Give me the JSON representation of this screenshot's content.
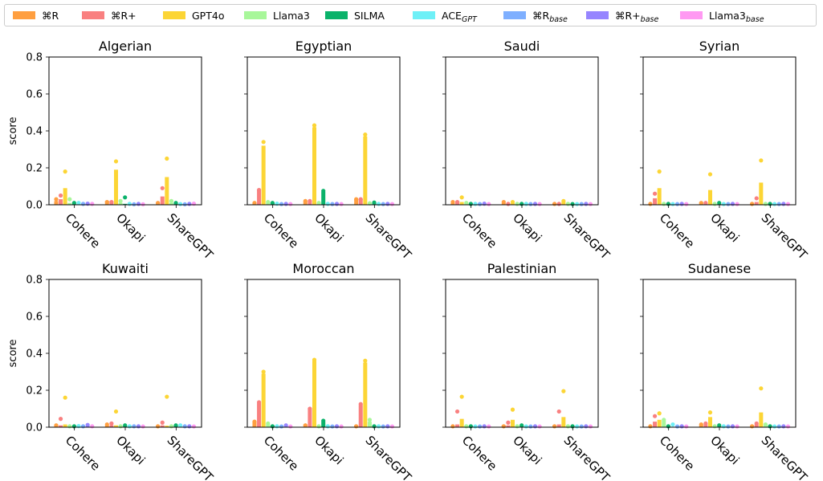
{
  "legend": [
    {
      "label": "⌘R",
      "sub": "",
      "color": "#ff9f40"
    },
    {
      "label": "⌘R+",
      "sub": "",
      "color": "#f98080"
    },
    {
      "label": "GPT4o",
      "sub": "",
      "color": "#fcd535"
    },
    {
      "label": "Llama3",
      "sub": "",
      "color": "#a8f79a"
    },
    {
      "label": "SILMA",
      "sub": "",
      "color": "#0ab26a"
    },
    {
      "label": "ACE",
      "sub": "GPT",
      "color": "#6ef0f7"
    },
    {
      "label": "⌘R",
      "sub": "base",
      "color": "#7eafff"
    },
    {
      "label": "⌘R+",
      "sub": "base",
      "color": "#9685ff"
    },
    {
      "label": "Llama3",
      "sub": "base",
      "color": "#ff99f2"
    }
  ],
  "chart_data": {
    "type": "bar",
    "ylabel": "score",
    "ylim": [
      0,
      0.8
    ],
    "yticks": [
      "0.0",
      "0.2",
      "0.4",
      "0.6",
      "0.8"
    ],
    "categories": [
      "Cohere",
      "Okapi",
      "ShareGPT"
    ],
    "series_names": [
      "⌘R",
      "⌘R+",
      "GPT4o",
      "Llama3",
      "SILMA",
      "ACEGPT",
      "⌘Rbase",
      "⌘R+base",
      "Llama3base"
    ],
    "panels": [
      {
        "title": "Algerian",
        "bars": [
          [
            0.02,
            0.03,
            0.09,
            0.01,
            0.005,
            0.004,
            0.003,
            0.004,
            0.003
          ],
          [
            0.02,
            0.02,
            0.19,
            0.01,
            0.005,
            0.004,
            0.003,
            0.004,
            0.003
          ],
          [
            0.01,
            0.045,
            0.15,
            0.01,
            0.012,
            0.004,
            0.003,
            0.004,
            0.003
          ]
        ],
        "points": [
          [
            0.03,
            0.05,
            0.18,
            0.03,
            0.01,
            0.01,
            0.005,
            0.006,
            0.005
          ],
          [
            0.015,
            0.015,
            0.235,
            0.02,
            0.04,
            0.005,
            0.003,
            0.005,
            0.003
          ],
          [
            0.01,
            0.09,
            0.25,
            0.02,
            0.01,
            0.004,
            0.003,
            0.005,
            0.006
          ]
        ]
      },
      {
        "title": "Egyptian",
        "bars": [
          [
            0.01,
            0.08,
            0.32,
            0.01,
            0.01,
            0.004,
            0.003,
            0.004,
            0.003
          ],
          [
            0.02,
            0.02,
            0.42,
            0.01,
            0.07,
            0.004,
            0.003,
            0.004,
            0.003
          ],
          [
            0.03,
            0.03,
            0.37,
            0.005,
            0.01,
            0.004,
            0.003,
            0.004,
            0.003
          ]
        ],
        "points": [
          [
            0.01,
            0.08,
            0.34,
            0.015,
            0.01,
            0.006,
            0.004,
            0.005,
            0.004
          ],
          [
            0.02,
            0.02,
            0.43,
            0.01,
            0.075,
            0.005,
            0.004,
            0.005,
            0.004
          ],
          [
            0.03,
            0.03,
            0.38,
            0.008,
            0.012,
            0.005,
            0.004,
            0.005,
            0.004
          ]
        ]
      },
      {
        "title": "Saudi",
        "bars": [
          [
            0.01,
            0.015,
            0.015,
            0.005,
            0.003,
            0.003,
            0.003,
            0.004,
            0.003
          ],
          [
            0.01,
            0.005,
            0.008,
            0.004,
            0.003,
            0.003,
            0.003,
            0.004,
            0.003
          ],
          [
            0.008,
            0.008,
            0.015,
            0.004,
            0.003,
            0.003,
            0.003,
            0.004,
            0.003
          ]
        ],
        "points": [
          [
            0.015,
            0.015,
            0.04,
            0.01,
            0.005,
            0.005,
            0.004,
            0.006,
            0.004
          ],
          [
            0.015,
            0.005,
            0.015,
            0.005,
            0.005,
            0.005,
            0.004,
            0.005,
            0.004
          ],
          [
            0.005,
            0.005,
            0.02,
            0.005,
            0.004,
            0.004,
            0.004,
            0.005,
            0.004
          ]
        ]
      },
      {
        "title": "Syrian",
        "bars": [
          [
            0.005,
            0.035,
            0.09,
            0.005,
            0.004,
            0.003,
            0.003,
            0.004,
            0.003
          ],
          [
            0.015,
            0.01,
            0.08,
            0.004,
            0.004,
            0.003,
            0.003,
            0.004,
            0.003
          ],
          [
            0.01,
            0.015,
            0.12,
            0.004,
            0.004,
            0.003,
            0.003,
            0.004,
            0.003
          ]
        ],
        "points": [
          [
            0.005,
            0.06,
            0.18,
            0.005,
            0.005,
            0.004,
            0.004,
            0.005,
            0.004
          ],
          [
            0.01,
            0.01,
            0.165,
            0.005,
            0.01,
            0.004,
            0.004,
            0.005,
            0.004
          ],
          [
            0.005,
            0.035,
            0.24,
            0.005,
            0.005,
            0.004,
            0.004,
            0.005,
            0.004
          ]
        ]
      },
      {
        "title": "Kuwaiti",
        "bars": [
          [
            0.015,
            0.01,
            0.015,
            0.005,
            0.003,
            0.003,
            0.003,
            0.005,
            0.003
          ],
          [
            0.01,
            0.01,
            0.01,
            0.004,
            0.005,
            0.003,
            0.003,
            0.004,
            0.003
          ],
          [
            0.005,
            0.01,
            0.008,
            0.004,
            0.01,
            0.003,
            0.003,
            0.004,
            0.003
          ]
        ],
        "points": [
          [
            0.01,
            0.045,
            0.16,
            0.005,
            0.005,
            0.006,
            0.005,
            0.012,
            0.005
          ],
          [
            0.015,
            0.02,
            0.085,
            0.005,
            0.01,
            0.005,
            0.005,
            0.005,
            0.004
          ],
          [
            0.005,
            0.025,
            0.165,
            0.005,
            0.01,
            0.01,
            0.005,
            0.005,
            0.004
          ]
        ]
      },
      {
        "title": "Moroccan",
        "bars": [
          [
            0.03,
            0.13,
            0.29,
            0.015,
            0.005,
            0.004,
            0.003,
            0.004,
            0.003
          ],
          [
            0.015,
            0.1,
            0.36,
            0.004,
            0.03,
            0.004,
            0.003,
            0.004,
            0.003
          ],
          [
            0.01,
            0.12,
            0.35,
            0.03,
            0.005,
            0.004,
            0.003,
            0.004,
            0.003
          ]
        ],
        "points": [
          [
            0.03,
            0.135,
            0.3,
            0.02,
            0.005,
            0.005,
            0.004,
            0.01,
            0.004
          ],
          [
            0.01,
            0.1,
            0.365,
            0.005,
            0.035,
            0.005,
            0.004,
            0.005,
            0.004
          ],
          [
            0.005,
            0.125,
            0.36,
            0.04,
            0.005,
            0.005,
            0.004,
            0.005,
            0.004
          ]
        ]
      },
      {
        "title": "Palestinian",
        "bars": [
          [
            0.005,
            0.015,
            0.045,
            0.004,
            0.003,
            0.003,
            0.003,
            0.004,
            0.003
          ],
          [
            0.01,
            0.01,
            0.04,
            0.004,
            0.004,
            0.003,
            0.003,
            0.004,
            0.003
          ],
          [
            0.01,
            0.015,
            0.055,
            0.004,
            0.003,
            0.003,
            0.003,
            0.004,
            0.003
          ]
        ],
        "points": [
          [
            0.005,
            0.085,
            0.165,
            0.005,
            0.005,
            0.004,
            0.004,
            0.005,
            0.004
          ],
          [
            0.005,
            0.025,
            0.095,
            0.005,
            0.01,
            0.004,
            0.004,
            0.005,
            0.004
          ],
          [
            0.005,
            0.085,
            0.195,
            0.005,
            0.005,
            0.004,
            0.004,
            0.005,
            0.004
          ]
        ]
      },
      {
        "title": "Sudanese",
        "bars": [
          [
            0.005,
            0.03,
            0.04,
            0.035,
            0.004,
            0.003,
            0.003,
            0.004,
            0.003
          ],
          [
            0.015,
            0.015,
            0.055,
            0.004,
            0.004,
            0.003,
            0.003,
            0.004,
            0.003
          ],
          [
            0.01,
            0.015,
            0.08,
            0.01,
            0.004,
            0.003,
            0.003,
            0.004,
            0.003
          ]
        ],
        "points": [
          [
            0.005,
            0.06,
            0.075,
            0.04,
            0.005,
            0.015,
            0.004,
            0.005,
            0.004
          ],
          [
            0.015,
            0.02,
            0.08,
            0.005,
            0.01,
            0.005,
            0.004,
            0.005,
            0.004
          ],
          [
            0.005,
            0.02,
            0.21,
            0.015,
            0.005,
            0.004,
            0.004,
            0.005,
            0.004
          ]
        ]
      }
    ]
  }
}
